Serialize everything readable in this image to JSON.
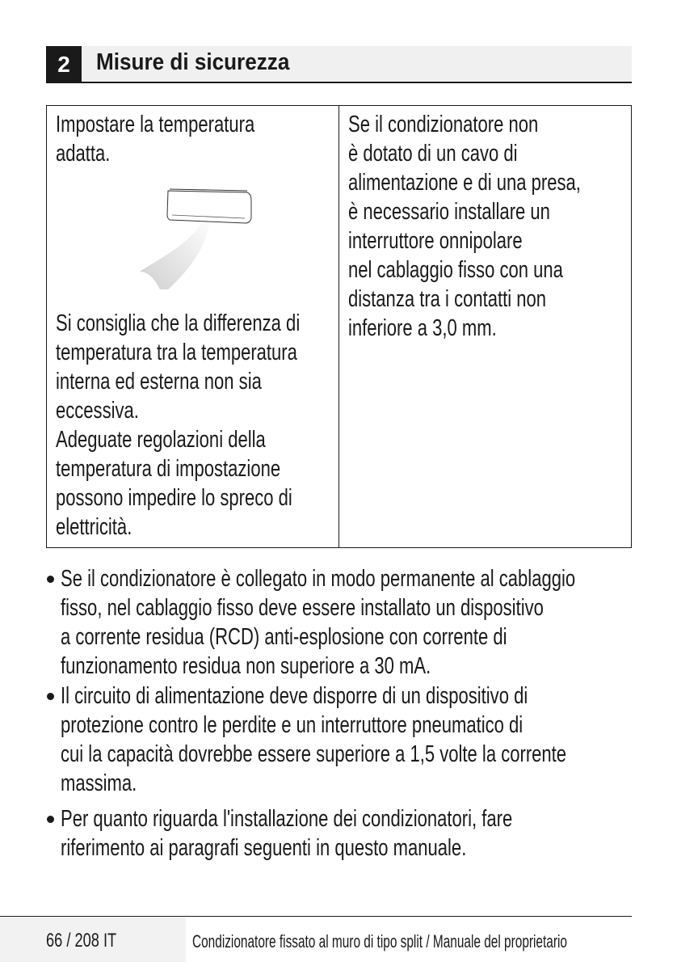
{
  "header": {
    "number": "2",
    "title": "Misure di sicurezza"
  },
  "table": {
    "left_top": [
      "Impostare la temperatura",
      "adatta."
    ],
    "left_bottom": [
      "Si consiglia che la differenza di",
      "temperatura tra la temperatura",
      "interna ed esterna non sia",
      "eccessiva.",
      "Adeguate regolazioni della",
      "temperatura di impostazione",
      "possono impedire lo spreco di",
      "elettricità."
    ],
    "right": [
      "Se il condizionatore non",
      "è dotato di un cavo di",
      "alimentazione e di una presa,",
      "è necessario installare un",
      "interruttore onnipolare",
      "nel cablaggio fisso con una",
      "distanza tra i contatti non",
      "inferiore a 3,0 mm."
    ]
  },
  "bullets": [
    [
      "Se il condizionatore è collegato in modo permanente al cablaggio",
      "fisso, nel cablaggio fisso deve essere installato un dispositivo",
      "a corrente residua (RCD) anti-esplosione con corrente di",
      "funzionamento residua non superiore a 30 mA."
    ],
    [
      "Il circuito di alimentazione deve disporre di un dispositivo di",
      "protezione contro le perdite e un interruttore pneumatico di",
      "cui la capacità dovrebbe essere superiore a 1,5 volte la corrente",
      "massima."
    ],
    [
      "Per quanto riguarda l'installazione dei condizionatori, fare",
      "riferimento ai paragrafi seguenti in questo manuale."
    ]
  ],
  "footer": {
    "page": "66 / 208 IT",
    "doc_title": "Condizionatore fissato al muro di tipo split / Manuale del proprietario"
  }
}
